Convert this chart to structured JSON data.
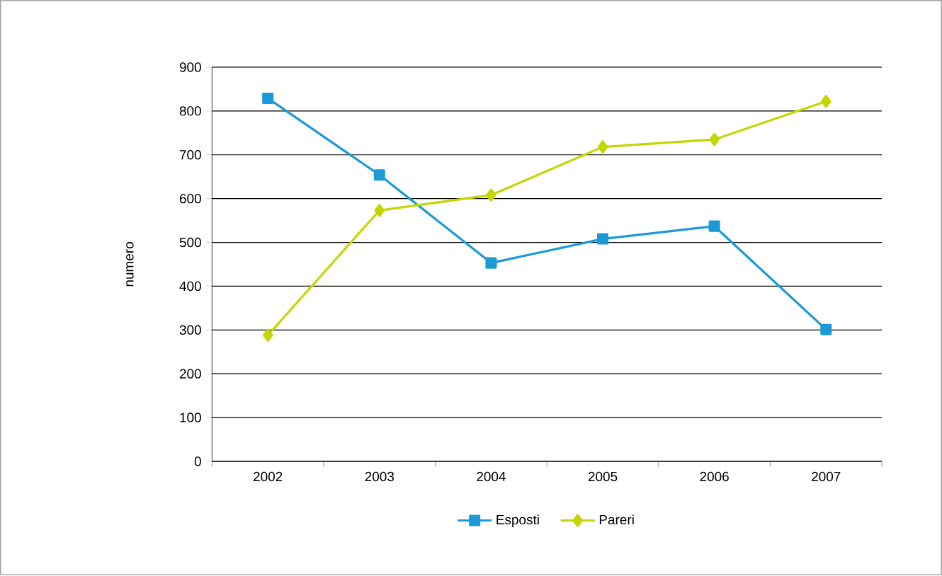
{
  "chart_data": {
    "type": "line",
    "ylabel": "numero",
    "categories": [
      "2002",
      "2003",
      "2004",
      "2005",
      "2006",
      "2007"
    ],
    "series": [
      {
        "name": "Esposti",
        "color": "#1a9ad6",
        "marker": "square",
        "values": [
          829,
          654,
          453,
          508,
          537,
          301
        ]
      },
      {
        "name": "Pareri",
        "color": "#c4d600",
        "marker": "diamond",
        "values": [
          288,
          573,
          608,
          718,
          735,
          822
        ]
      }
    ],
    "ylim": [
      0,
      900
    ],
    "yticks": [
      0,
      100,
      200,
      300,
      400,
      500,
      600,
      700,
      800,
      900
    ],
    "grid": "y",
    "legend": "bottom",
    "line_style": "solid"
  }
}
